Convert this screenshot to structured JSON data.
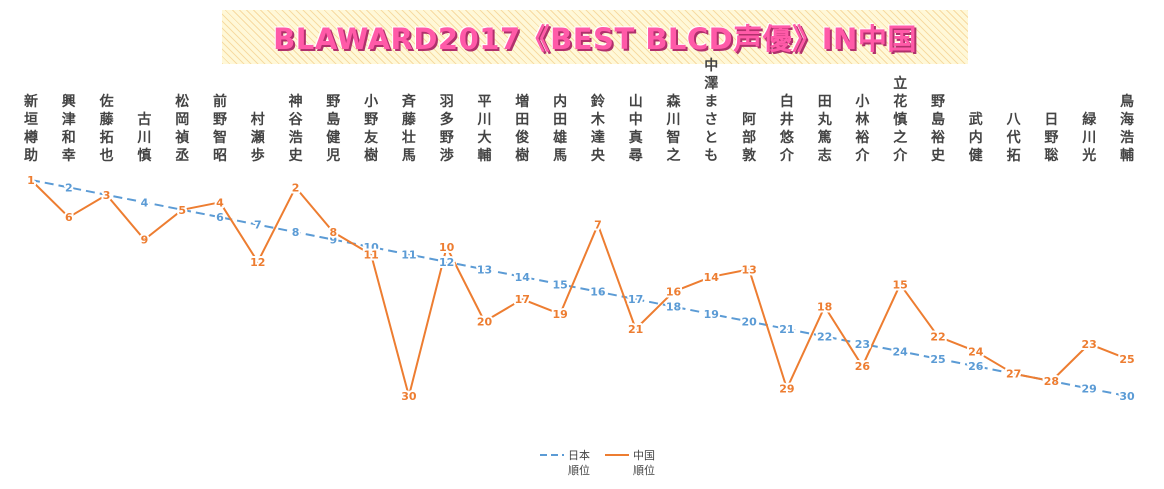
{
  "title": "BLAWARD2017《BEST BLCD声優》IN中国",
  "chart_data": {
    "type": "line",
    "title": "BLAWARD2017《BEST BLCD声優》IN中国",
    "categories": [
      "新垣樽助",
      "興津和幸",
      "佐藤拓也",
      "古川慎",
      "松岡禎丞",
      "前野智昭",
      "村瀬歩",
      "神谷浩史",
      "野島健児",
      "小野友樹",
      "斉藤壮馬",
      "羽多野渉",
      "平川大輔",
      "増田俊樹",
      "内田雄馬",
      "鈴木達央",
      "山中真尋",
      "森川智之",
      "中澤まさとも",
      "阿部敦",
      "白井悠介",
      "田丸篤志",
      "小林裕介",
      "立花慎之介",
      "野島裕史",
      "武内健",
      "八代拓",
      "日野聡",
      "緑川光",
      "鳥海浩輔"
    ],
    "series": [
      {
        "name": "日本\n順位",
        "color": "#5b9bd5",
        "dash": true,
        "values": [
          1,
          2,
          3,
          4,
          5,
          6,
          7,
          8,
          9,
          10,
          11,
          12,
          13,
          14,
          15,
          16,
          17,
          18,
          19,
          20,
          21,
          22,
          23,
          24,
          25,
          26,
          27,
          28,
          29,
          30
        ]
      },
      {
        "name": "中国\n順位",
        "color": "#ed7d31",
        "dash": false,
        "values": [
          1,
          6,
          3,
          9,
          5,
          4,
          12,
          2,
          8,
          11,
          30,
          10,
          20,
          17,
          19,
          7,
          21,
          16,
          14,
          13,
          29,
          18,
          26,
          15,
          22,
          24,
          27,
          28,
          23,
          25
        ]
      }
    ],
    "y_axis": {
      "reversed": true,
      "range": [
        1,
        30
      ],
      "visible": false
    },
    "grid": false,
    "legend": {
      "position": "bottom",
      "entries": [
        "日本\n順位",
        "中国\n順位"
      ]
    }
  }
}
